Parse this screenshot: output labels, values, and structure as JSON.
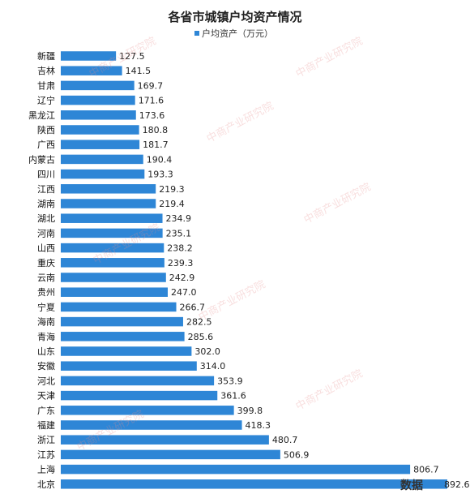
{
  "chart_data": {
    "type": "bar",
    "orientation": "horizontal",
    "title": "各省市城镇户均资产情况",
    "legend": {
      "label": "户均资产（万元）",
      "placement": "top",
      "color": "#2e86d6"
    },
    "categories": [
      "新疆",
      "吉林",
      "甘肃",
      "辽宁",
      "黑龙江",
      "陕西",
      "广西",
      "内蒙古",
      "四川",
      "江西",
      "湖南",
      "湖北",
      "河南",
      "山西",
      "重庆",
      "云南",
      "贵州",
      "宁夏",
      "海南",
      "青海",
      "山东",
      "安徽",
      "河北",
      "天津",
      "广东",
      "福建",
      "浙江",
      "江苏",
      "上海",
      "北京"
    ],
    "values": [
      127.5,
      141.5,
      169.7,
      171.6,
      173.6,
      180.8,
      181.7,
      190.4,
      193.3,
      219.3,
      219.4,
      234.9,
      235.1,
      238.2,
      239.3,
      242.9,
      247.0,
      266.7,
      282.5,
      285.6,
      302.0,
      314.0,
      353.9,
      361.6,
      399.8,
      418.3,
      480.7,
      506.9,
      806.7,
      892.6
    ],
    "value_labels": [
      "127.5",
      "141.5",
      "169.7",
      "171.6",
      "173.6",
      "180.8",
      "181.7",
      "190.4",
      "193.3",
      "219.3",
      "219.4",
      "234.9",
      "235.1",
      "238.2",
      "239.3",
      "242.9",
      "247.0",
      "266.7",
      "282.5",
      "285.6",
      "302.0",
      "314.0",
      "353.9",
      "361.6",
      "399.8",
      "418.3",
      "480.7",
      "506.9",
      "806.7",
      "892.6"
    ],
    "grid": false
  },
  "watermark": {
    "text": "中商产业研究院",
    "color": "#e68c8c"
  },
  "corner_logo": "数据"
}
